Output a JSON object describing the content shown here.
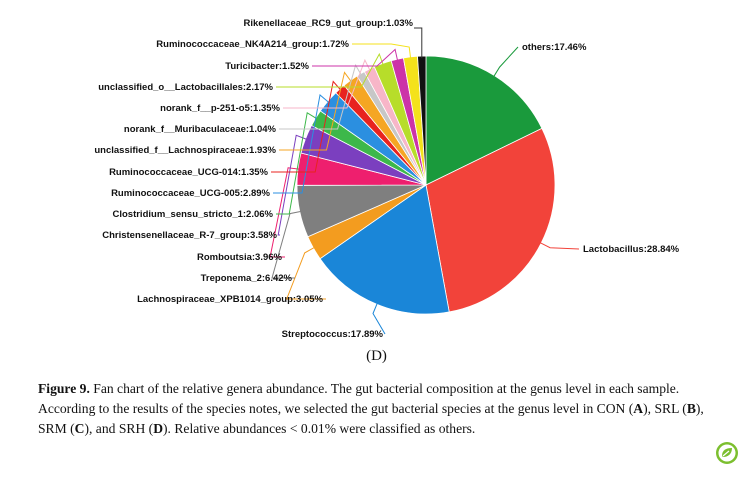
{
  "chart_data": {
    "type": "pie",
    "slices": [
      {
        "label": "others",
        "value": 17.46,
        "text": "others:17.46%",
        "color": "#1a9a3c"
      },
      {
        "label": "Lactobacillus",
        "value": 28.84,
        "text": "Lactobacillus:28.84%",
        "color": "#f2433a"
      },
      {
        "label": "Streptococcus",
        "value": 17.89,
        "text": "Streptococcus:17.89%",
        "color": "#1a86d8"
      },
      {
        "label": "Lachnospiraceae_XPB1014_group",
        "value": 3.05,
        "text": "Lachnospiraceae_XPB1014_group:3.05%",
        "color": "#f39c1f"
      },
      {
        "label": "Treponema_2",
        "value": 6.42,
        "text": "Treponema_2:6.42%",
        "color": "#7f7f7f"
      },
      {
        "label": "Romboutsia",
        "value": 3.96,
        "text": "Romboutsia:3.96%",
        "color": "#ee1f6e"
      },
      {
        "label": "Christensenellaceae_R-7_group",
        "value": 3.58,
        "text": "Christensenellaceae_R-7_group:3.58%",
        "color": "#7b3fbf"
      },
      {
        "label": "Clostridium_sensu_stricto_1",
        "value": 2.06,
        "text": "Clostridium_sensu_stricto_1:2.06%",
        "color": "#3db84a"
      },
      {
        "label": "Ruminococcaceae_UCG-005",
        "value": 2.89,
        "text": "Ruminococcaceae_UCG-005:2.89%",
        "color": "#2b8fe0"
      },
      {
        "label": "Ruminococcaceae_UCG-014",
        "value": 1.35,
        "text": "Ruminococcaceae_UCG-014:1.35%",
        "color": "#e8231f"
      },
      {
        "label": "unclassified_f__Lachnospiraceae",
        "value": 1.93,
        "text": "unclassified_f__Lachnospiraceae:1.93%",
        "color": "#f5a623"
      },
      {
        "label": "norank_f__Muribaculaceae",
        "value": 1.04,
        "text": "norank_f__Muribaculaceae:1.04%",
        "color": "#c7c7c7"
      },
      {
        "label": "norank_f__p-251-o5",
        "value": 1.35,
        "text": "norank_f__p-251-o5:1.35%",
        "color": "#f7b6c8"
      },
      {
        "label": "unclassified_o__Lactobacillales",
        "value": 2.17,
        "text": "unclassified_o__Lactobacillales:2.17%",
        "color": "#b7dd2a"
      },
      {
        "label": "Turicibacter",
        "value": 1.52,
        "text": "Turicibacter:1.52%",
        "color": "#cc33a8"
      },
      {
        "label": "Ruminococcaceae_NK4A214_group",
        "value": 1.72,
        "text": "Ruminococcaceae_NK4A214_group:1.72%",
        "color": "#f4e21b"
      },
      {
        "label": "Rikenellaceae_RC9_gut_group",
        "value": 1.03,
        "text": "Rikenellaceae_RC9_gut_group:1.03%",
        "color": "#111111"
      }
    ]
  },
  "panel_label": "(D)",
  "caption": {
    "figure_label": "Figure 9.",
    "t1": " Fan chart of the relative genera abundance. The gut bacterial composition at the genus level in each sample. According to the results of the species notes, we selected the gut bacterial species at the genus level in CON (",
    "a": "A",
    "t2": "), SRL (",
    "b": "B",
    "t3": "), SRM (",
    "c": "C",
    "t4": "), and SRH (",
    "d": "D",
    "t5": "). Relative abundances < 0.01% were classified as others."
  },
  "badge_icon": "leaf-badge-icon",
  "badge_color": "#7cbf2f"
}
